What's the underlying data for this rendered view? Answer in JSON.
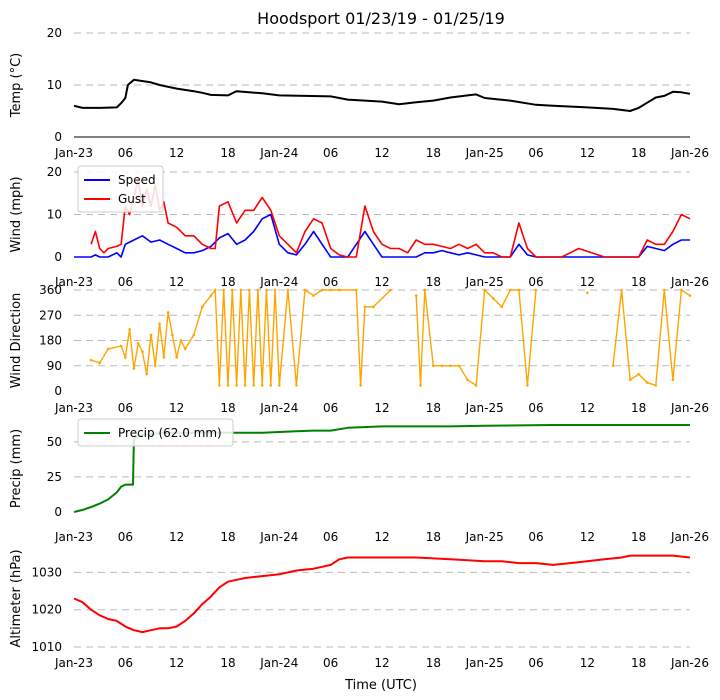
{
  "chart_data": {
    "type": "line",
    "title": "Hoodsport 01/23/19 - 01/25/19",
    "xlabel": "Time (UTC)",
    "x_range_hours": [
      0,
      72
    ],
    "x_tick_labels": [
      "Jan-23",
      "06",
      "12",
      "18",
      "Jan-24",
      "06",
      "12",
      "18",
      "Jan-25",
      "06",
      "12",
      "18",
      "Jan-26"
    ],
    "panels": [
      {
        "id": "temp",
        "ylabel": "Temp (°C)",
        "ylim": [
          0,
          20
        ],
        "yticks": [
          "0",
          "10",
          "20"
        ],
        "series": [
          {
            "name": "Temp",
            "color": "#000000",
            "x": [
              0,
              1,
              3,
              5,
              5.5,
              6,
              6.3,
              7,
              9,
              10,
              12,
              14,
              15,
              16,
              18,
              19,
              22,
              24,
              27,
              30,
              32,
              36,
              38,
              40,
              42,
              44,
              46,
              47,
              48,
              51,
              54,
              56,
              60,
              63,
              65,
              66,
              67,
              68,
              69,
              70,
              71,
              72
            ],
            "y": [
              6,
              5.6,
              5.6,
              5.7,
              6.5,
              7.5,
              10,
              11,
              10.5,
              10,
              9.3,
              8.8,
              8.5,
              8.1,
              8,
              8.8,
              8.4,
              8,
              7.9,
              7.8,
              7.2,
              6.8,
              6.3,
              6.7,
              7,
              7.6,
              8,
              8.2,
              7.5,
              7,
              6.2,
              6,
              5.7,
              5.4,
              5,
              5.6,
              6.6,
              7.6,
              7.9,
              8.7,
              8.6,
              8.3
            ]
          }
        ]
      },
      {
        "id": "wind",
        "ylabel": "Wind (mph)",
        "ylim": [
          0,
          20
        ],
        "yticks": [
          "0",
          "10",
          "20"
        ],
        "legend": {
          "position": "top-left",
          "entries": [
            "Speed",
            "Gust"
          ]
        },
        "series": [
          {
            "name": "Speed",
            "color": "#0000ff",
            "x": [
              0,
              2,
              2.5,
              3,
              4,
              5,
              5.5,
              6,
              7,
              8,
              9,
              10,
              11,
              12,
              13,
              14,
              15,
              16,
              17,
              18,
              19,
              20,
              21,
              22,
              23,
              24,
              25,
              26,
              27,
              28,
              29,
              30,
              31,
              32,
              33,
              34,
              35,
              36,
              37,
              38,
              39,
              40,
              41,
              42,
              43,
              44,
              45,
              46,
              47,
              48,
              49,
              50,
              51,
              52,
              53,
              54,
              56,
              60,
              62,
              63,
              64,
              65,
              66,
              67,
              68,
              69,
              70,
              71,
              72
            ],
            "y": [
              0,
              0,
              0.5,
              0,
              0,
              1,
              0,
              3,
              4,
              5,
              3.5,
              4,
              3,
              2,
              1,
              1,
              1.5,
              2.5,
              4.5,
              5.5,
              3,
              4,
              6,
              9,
              10,
              3,
              1,
              0.5,
              3,
              6,
              3,
              0,
              0,
              0,
              3,
              6,
              3,
              0,
              0,
              0,
              0,
              0,
              1,
              1,
              1.5,
              1,
              0.5,
              1,
              0.5,
              0,
              0,
              0,
              0,
              3,
              0.5,
              0,
              0,
              0,
              0,
              0,
              0,
              0,
              0,
              2.5,
              2,
              1.5,
              3,
              4,
              4
            ]
          },
          {
            "name": "Gust",
            "color": "#ff0000",
            "x": [
              2,
              2.5,
              3,
              3.5,
              4,
              5,
              5.5,
              6,
              6.5,
              7,
              7.5,
              8,
              8.5,
              9,
              9.5,
              10,
              10.5,
              11,
              12,
              13,
              14,
              15,
              16,
              16.5,
              17,
              18,
              19,
              20,
              21,
              22,
              23,
              24,
              25,
              26,
              27,
              28,
              29,
              30,
              31,
              32,
              33,
              34,
              35,
              36,
              37,
              38,
              39,
              40,
              41,
              42,
              43,
              44,
              45,
              46,
              47,
              48,
              49,
              50,
              51,
              52,
              53,
              54,
              57,
              59,
              62,
              63,
              64,
              65,
              66,
              67,
              68,
              69,
              70,
              71,
              72
            ],
            "y": [
              3,
              6,
              2,
              1,
              2,
              2.5,
              3,
              12,
              10,
              14,
              18,
              12,
              16,
              12,
              17,
              11,
              13,
              8,
              7,
              5,
              5,
              3,
              2,
              2,
              12,
              13,
              8,
              11,
              11,
              14,
              11,
              5,
              3,
              1,
              6,
              9,
              8,
              2,
              0.5,
              0,
              0,
              12,
              6,
              3,
              2,
              2,
              1,
              4,
              3,
              3,
              2.5,
              2,
              3,
              2,
              3,
              1,
              1,
              0,
              0,
              8,
              2,
              0,
              0,
              2,
              0,
              0,
              0,
              0,
              0,
              4,
              3,
              3,
              6,
              10,
              9
            ]
          }
        ]
      },
      {
        "id": "dir",
        "ylabel": "Wind Direction",
        "ylim": [
          0,
          360
        ],
        "yticks": [
          "0",
          "90",
          "180",
          "270",
          "360"
        ],
        "series": [
          {
            "name": "Direction",
            "color": "#ffa500",
            "x": [
              2,
              3,
              4,
              5.5,
              6,
              6.5,
              7,
              7.5,
              8,
              8.5,
              9,
              9.5,
              10,
              10.5,
              11,
              11.5,
              12,
              12.5,
              13,
              14,
              15,
              16,
              16.5,
              17,
              17.5,
              18,
              18.5,
              19,
              19.5,
              20,
              20.5,
              21,
              21.5,
              22,
              22.5,
              23,
              23.5,
              24,
              25,
              26,
              27,
              28,
              29,
              30,
              31,
              33,
              33.5,
              34,
              35,
              37,
              40,
              40.5,
              41,
              42,
              43,
              44,
              45,
              46,
              47,
              48,
              49,
              50,
              51,
              52,
              53,
              54,
              60,
              63,
              64,
              65,
              66,
              67,
              68,
              69,
              70,
              71,
              72
            ],
            "y": [
              110,
              100,
              150,
              160,
              120,
              220,
              80,
              170,
              140,
              60,
              200,
              90,
              240,
              120,
              280,
              200,
              120,
              180,
              150,
              200,
              300,
              340,
              360,
              20,
              360,
              20,
              360,
              20,
              360,
              20,
              360,
              20,
              360,
              20,
              360,
              20,
              360,
              20,
              360,
              20,
              360,
              340,
              360,
              360,
              360,
              360,
              20,
              300,
              300,
              360,
              340,
              20,
              360,
              90,
              90,
              90,
              90,
              40,
              20,
              360,
              330,
              300,
              360,
              360,
              20,
              360,
              350,
              90,
              360,
              40,
              60,
              30,
              20,
              360,
              40,
              360,
              340
            ]
          }
        ]
      },
      {
        "id": "precip",
        "ylabel": "Precip (mm)",
        "ylim": [
          0,
          62
        ],
        "yticks": [
          "0",
          "25",
          "50"
        ],
        "legend": {
          "position": "top-left",
          "entries": [
            "Precip (62.0 mm)"
          ]
        },
        "series": [
          {
            "name": "Precip (62.0 mm)",
            "color": "#008000",
            "x": [
              0,
              1,
              2,
              3,
              4,
              5,
              5.5,
              6,
              6.9,
              7,
              8,
              10,
              12,
              14,
              18,
              22,
              26,
              28,
              30,
              32,
              36,
              40,
              44,
              48,
              56,
              72
            ],
            "y": [
              0,
              1.5,
              3.5,
              6,
              9,
              14,
              18,
              19.5,
              19.5,
              52,
              55,
              56,
              56.5,
              56.5,
              56.5,
              56.5,
              57.5,
              58,
              58,
              60,
              61,
              61,
              61,
              61.5,
              62,
              62
            ]
          }
        ]
      },
      {
        "id": "alt",
        "ylabel": "Altimeter (hPa)",
        "ylim": [
          1010,
          1036
        ],
        "yticks": [
          "1010",
          "1020",
          "1030"
        ],
        "series": [
          {
            "name": "Altimeter",
            "color": "#ff0000",
            "x": [
              0,
              1,
              2,
              3,
              4,
              5,
              6,
              7,
              8,
              9,
              10,
              11,
              12,
              13,
              14,
              15,
              16,
              17,
              18,
              19,
              20,
              22,
              24,
              26,
              28,
              29,
              30,
              31,
              32,
              34,
              36,
              40,
              44,
              48,
              50,
              52,
              54,
              56,
              58,
              60,
              62,
              64,
              65,
              66,
              68,
              70,
              72
            ],
            "y": [
              1023,
              1022,
              1020,
              1018.5,
              1017.5,
              1017,
              1015.5,
              1014.5,
              1014,
              1014.5,
              1015,
              1015,
              1015.5,
              1017,
              1019,
              1021.5,
              1023.5,
              1026,
              1027.5,
              1028,
              1028.5,
              1029,
              1029.5,
              1030.5,
              1031,
              1031.5,
              1032,
              1033.5,
              1034,
              1034,
              1034,
              1034,
              1033.5,
              1033,
              1033,
              1032.5,
              1032.5,
              1032,
              1032.5,
              1033,
              1033.5,
              1034,
              1034.5,
              1034.5,
              1034.5,
              1034.5,
              1034
            ]
          }
        ]
      }
    ]
  }
}
